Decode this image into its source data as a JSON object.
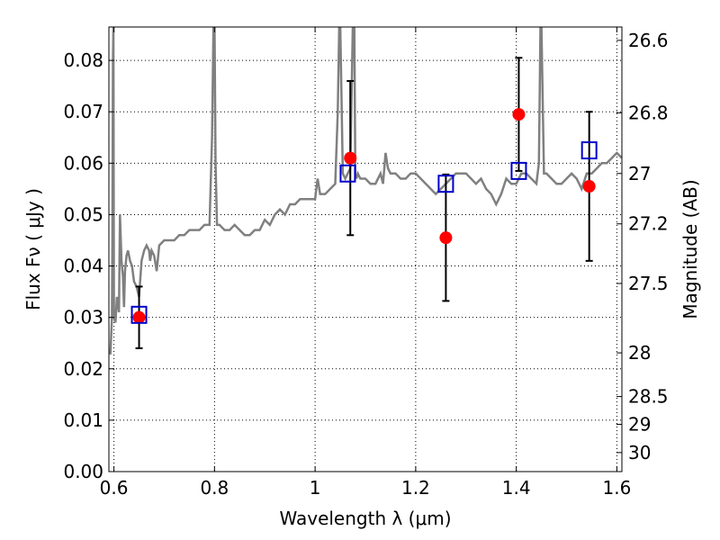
{
  "chart_data": {
    "type": "scatter",
    "xlabel": "Wavelength  λ (μm)",
    "ylabel": "Flux  Fν  ( μJy )",
    "ylabel_right": "Magnitude (AB)",
    "xlim": [
      0.59,
      1.61
    ],
    "ylim": [
      0.0,
      0.0865
    ],
    "grid": true,
    "x_ticks": [
      0.6,
      0.8,
      1.0,
      1.2,
      1.4,
      1.6
    ],
    "x_tick_labels": [
      "0.6",
      "0.8",
      "1",
      "1.2",
      "1.4",
      "1.6"
    ],
    "y_ticks": [
      0.0,
      0.01,
      0.02,
      0.03,
      0.04,
      0.05,
      0.06,
      0.07,
      0.08
    ],
    "y_tick_labels": [
      "0.00",
      "0.01",
      "0.02",
      "0.03",
      "0.04",
      "0.05",
      "0.06",
      "0.07",
      "0.08"
    ],
    "right_ticks": [
      {
        "label": "26.6",
        "flux": 0.0839
      },
      {
        "label": "26.8",
        "flux": 0.0698
      },
      {
        "label": "27",
        "flux": 0.058
      },
      {
        "label": "27.2",
        "flux": 0.0482
      },
      {
        "label": "27.5",
        "flux": 0.0366
      },
      {
        "label": "28",
        "flux": 0.0231
      },
      {
        "label": "28.5",
        "flux": 0.0146
      },
      {
        "label": "29",
        "flux": 0.0092
      },
      {
        "label": "30",
        "flux": 0.0037
      }
    ],
    "series": [
      {
        "kind": "line",
        "color": "#808080",
        "x": [
          0.59,
          0.593,
          0.596,
          0.597,
          0.598,
          0.599,
          0.6,
          0.603,
          0.606,
          0.61,
          0.612,
          0.615,
          0.618,
          0.62,
          0.622,
          0.625,
          0.628,
          0.632,
          0.636,
          0.64,
          0.645,
          0.65,
          0.655,
          0.66,
          0.665,
          0.67,
          0.672,
          0.675,
          0.68,
          0.685,
          0.69,
          0.7,
          0.71,
          0.72,
          0.73,
          0.74,
          0.75,
          0.76,
          0.77,
          0.78,
          0.79,
          0.795,
          0.798,
          0.8,
          0.802,
          0.805,
          0.81,
          0.82,
          0.83,
          0.84,
          0.85,
          0.86,
          0.87,
          0.88,
          0.89,
          0.9,
          0.91,
          0.92,
          0.93,
          0.94,
          0.95,
          0.96,
          0.97,
          0.98,
          0.99,
          1.0,
          1.005,
          1.01,
          1.02,
          1.03,
          1.04,
          1.045,
          1.048,
          1.05,
          1.055,
          1.06,
          1.065,
          1.07,
          1.075,
          1.078,
          1.08,
          1.082,
          1.085,
          1.09,
          1.1,
          1.11,
          1.12,
          1.13,
          1.135,
          1.14,
          1.145,
          1.15,
          1.16,
          1.17,
          1.18,
          1.19,
          1.2,
          1.21,
          1.22,
          1.23,
          1.24,
          1.25,
          1.26,
          1.27,
          1.28,
          1.29,
          1.3,
          1.31,
          1.32,
          1.33,
          1.34,
          1.35,
          1.36,
          1.37,
          1.38,
          1.39,
          1.4,
          1.41,
          1.42,
          1.43,
          1.44,
          1.445,
          1.448,
          1.45,
          1.455,
          1.46,
          1.47,
          1.48,
          1.49,
          1.5,
          1.51,
          1.52,
          1.53,
          1.54,
          1.55,
          1.56,
          1.57,
          1.58,
          1.59,
          1.6,
          1.61
        ],
        "y": [
          0.023,
          0.023,
          0.03,
          0.045,
          0.08,
          0.0865,
          0.03,
          0.029,
          0.034,
          0.031,
          0.05,
          0.041,
          0.038,
          0.032,
          0.039,
          0.042,
          0.043,
          0.041,
          0.04,
          0.037,
          0.036,
          0.034,
          0.041,
          0.043,
          0.044,
          0.043,
          0.041,
          0.043,
          0.042,
          0.039,
          0.044,
          0.045,
          0.045,
          0.045,
          0.046,
          0.046,
          0.047,
          0.047,
          0.047,
          0.048,
          0.048,
          0.065,
          0.0865,
          0.0865,
          0.06,
          0.048,
          0.048,
          0.047,
          0.047,
          0.048,
          0.047,
          0.046,
          0.046,
          0.047,
          0.047,
          0.049,
          0.048,
          0.05,
          0.051,
          0.05,
          0.052,
          0.052,
          0.053,
          0.053,
          0.053,
          0.053,
          0.057,
          0.054,
          0.054,
          0.055,
          0.056,
          0.07,
          0.0865,
          0.0865,
          0.058,
          0.057,
          0.058,
          0.059,
          0.0865,
          0.0865,
          0.058,
          0.057,
          0.058,
          0.057,
          0.057,
          0.056,
          0.056,
          0.058,
          0.056,
          0.062,
          0.059,
          0.058,
          0.058,
          0.057,
          0.057,
          0.058,
          0.058,
          0.057,
          0.056,
          0.055,
          0.054,
          0.055,
          0.056,
          0.057,
          0.058,
          0.058,
          0.058,
          0.057,
          0.056,
          0.057,
          0.055,
          0.054,
          0.052,
          0.054,
          0.057,
          0.056,
          0.056,
          0.058,
          0.058,
          0.057,
          0.056,
          0.06,
          0.0865,
          0.0865,
          0.058,
          0.058,
          0.057,
          0.056,
          0.056,
          0.057,
          0.058,
          0.057,
          0.055,
          0.058,
          0.058,
          0.059,
          0.06,
          0.06,
          0.061,
          0.062,
          0.061
        ]
      },
      {
        "name": "",
        "kind": "markers",
        "marker": "circle",
        "color": "#ff0000",
        "x": [
          0.65,
          1.07,
          1.26,
          1.405,
          1.545
        ],
        "y": [
          0.03,
          0.061,
          0.0455,
          0.0695,
          0.0555
        ],
        "yerr": [
          0.006,
          0.015,
          0.0123,
          0.011,
          0.0145
        ]
      },
      {
        "name": "",
        "kind": "markers",
        "marker": "open-square",
        "color": "#0000cc",
        "x": [
          0.65,
          1.065,
          1.26,
          1.405,
          1.545
        ],
        "y": [
          0.0305,
          0.058,
          0.056,
          0.0585,
          0.0625
        ]
      }
    ]
  }
}
